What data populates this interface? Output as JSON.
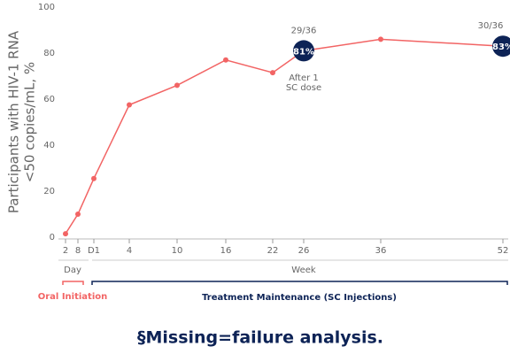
{
  "chart_data": {
    "type": "line",
    "y_label_lines": [
      "Participants with HIV-1 RNA",
      "<50 copies/mL, %"
    ],
    "categories": [
      "2",
      "8",
      "D1",
      "4",
      "10",
      "16",
      "22",
      "26",
      "36",
      "52"
    ],
    "values": [
      1.5,
      10,
      25.5,
      57.5,
      66,
      77,
      71.5,
      81,
      86,
      83
    ],
    "value_labels": [
      null,
      null,
      null,
      null,
      null,
      null,
      null,
      "81%",
      null,
      "83%"
    ],
    "fractions": [
      null,
      null,
      null,
      null,
      null,
      null,
      null,
      "29/36",
      null,
      "30/36"
    ],
    "annotation_lines": [
      "After 1",
      "SC dose"
    ],
    "day_label": "Day",
    "week_label": "Week",
    "oral_label": "Oral Initiation",
    "maintenance_label": "Treatment Maintenance (SC Injections)",
    "footnote": "§Missing=failure analysis.",
    "color": "#f26464",
    "highlight_color": "#0d2356",
    "ylim": [
      0,
      100
    ],
    "yticks": [
      0,
      20,
      40,
      60,
      80,
      100
    ]
  }
}
